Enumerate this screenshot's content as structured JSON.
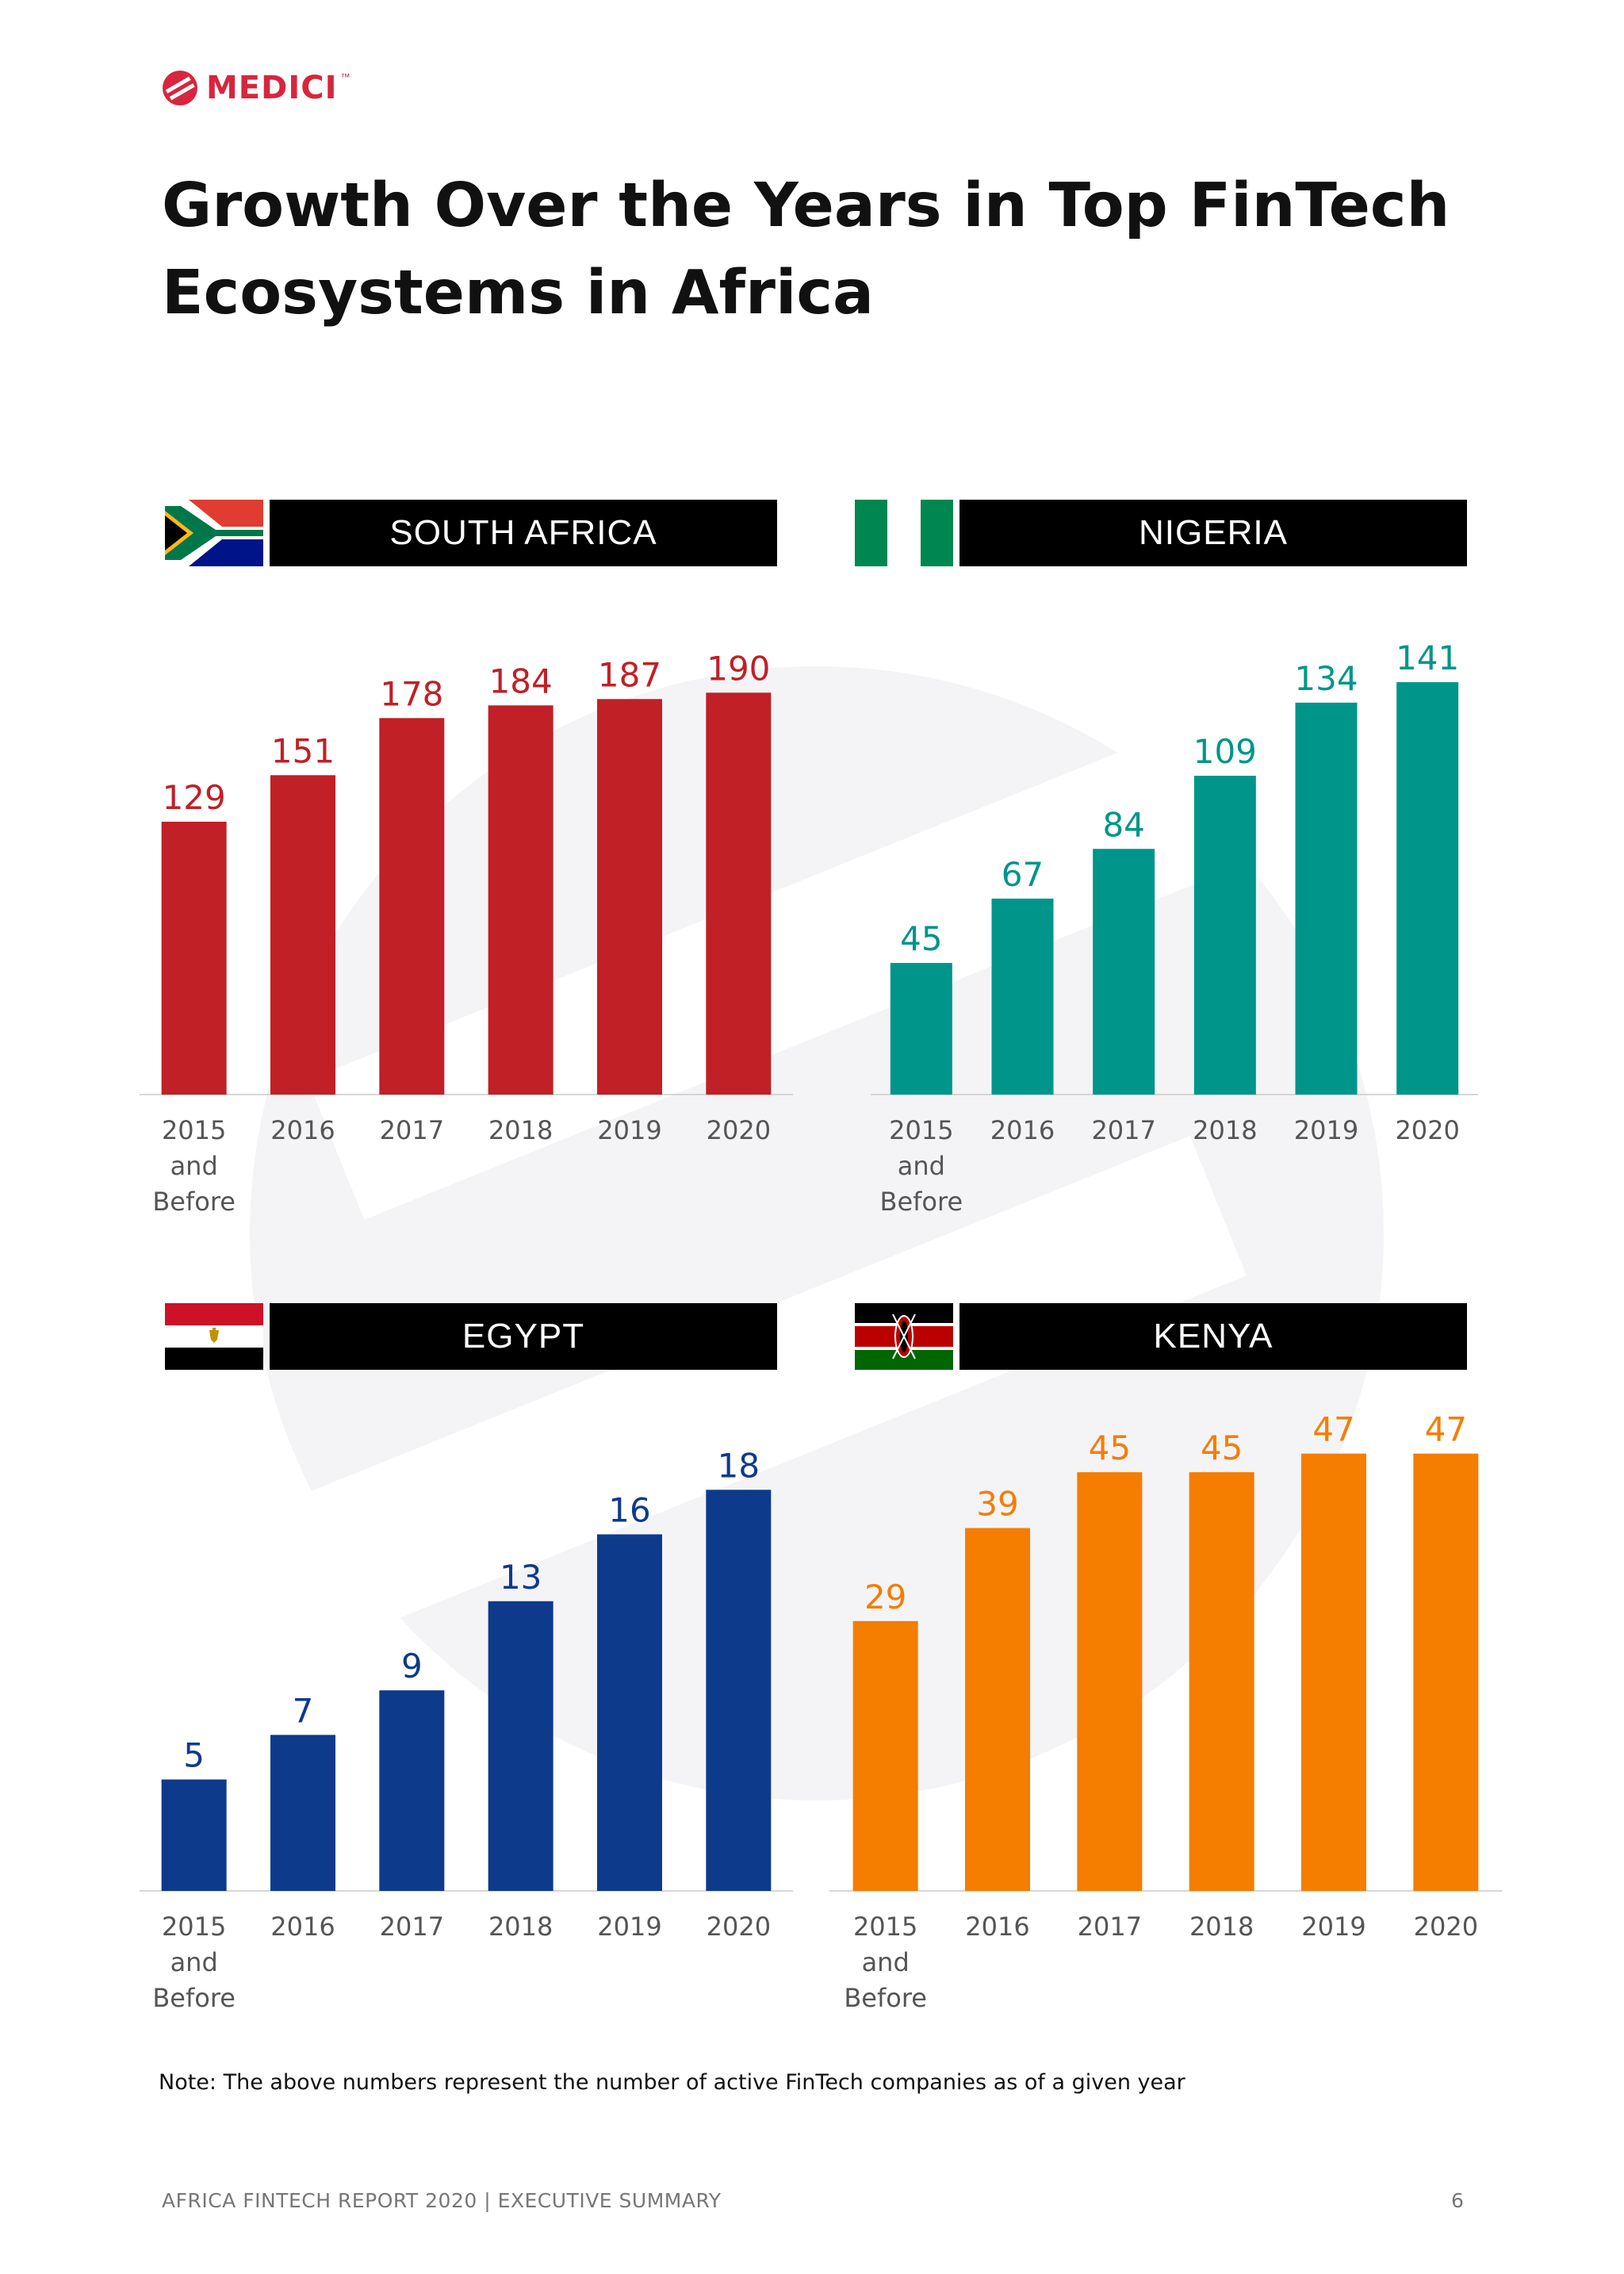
{
  "brand": {
    "name": "MEDICI",
    "tm": "™"
  },
  "page_title": "Growth Over the Years in Top FinTech Ecosystems in Africa",
  "note": "Note: The above numbers represent the number of active FinTech companies as of a given year",
  "footer": {
    "left": "AFRICA FINTECH REPORT 2020  |  EXECUTIVE SUMMARY",
    "page_number": "6"
  },
  "colors": {
    "south_africa": "#c02026",
    "nigeria": "#00958a",
    "egypt": "#0e3a8c",
    "kenya": "#f57d00"
  },
  "icons": {
    "logo": "medici-logo-icon",
    "flags": [
      "south-africa-flag-icon",
      "nigeria-flag-icon",
      "egypt-flag-icon",
      "kenya-flag-icon"
    ]
  },
  "chart_data": [
    {
      "type": "bar",
      "country": "SOUTH AFRICA",
      "color": "#c02026",
      "categories": [
        [
          "2015",
          "and",
          "Before"
        ],
        [
          "2016"
        ],
        [
          "2017"
        ],
        [
          "2018"
        ],
        [
          "2019"
        ],
        [
          "2020"
        ]
      ],
      "values": [
        129,
        151,
        178,
        184,
        187,
        190
      ],
      "ylim": [
        0,
        210
      ],
      "grid": false,
      "legend": "none"
    },
    {
      "type": "bar",
      "country": "NIGERIA",
      "color": "#00958a",
      "categories": [
        [
          "2015",
          "and",
          "Before"
        ],
        [
          "2016"
        ],
        [
          "2017"
        ],
        [
          "2018"
        ],
        [
          "2019"
        ],
        [
          "2020"
        ]
      ],
      "values": [
        45,
        67,
        84,
        109,
        134,
        141
      ],
      "ylim": [
        0,
        160
      ],
      "grid": false,
      "legend": "none"
    },
    {
      "type": "bar",
      "country": "EGYPT",
      "color": "#0e3a8c",
      "categories": [
        [
          "2015",
          "and",
          "Before"
        ],
        [
          "2016"
        ],
        [
          "2017"
        ],
        [
          "2018"
        ],
        [
          "2019"
        ],
        [
          "2020"
        ]
      ],
      "values": [
        5,
        7,
        9,
        13,
        16,
        18
      ],
      "ylim": [
        0,
        21
      ],
      "grid": false,
      "legend": "none"
    },
    {
      "type": "bar",
      "country": "KENYA",
      "color": "#f57d00",
      "categories": [
        [
          "2015",
          "and",
          "Before"
        ],
        [
          "2016"
        ],
        [
          "2017"
        ],
        [
          "2018"
        ],
        [
          "2019"
        ],
        [
          "2020"
        ]
      ],
      "values": [
        29,
        39,
        45,
        45,
        47,
        47
      ],
      "ylim": [
        0,
        52
      ],
      "grid": false,
      "legend": "none"
    }
  ]
}
